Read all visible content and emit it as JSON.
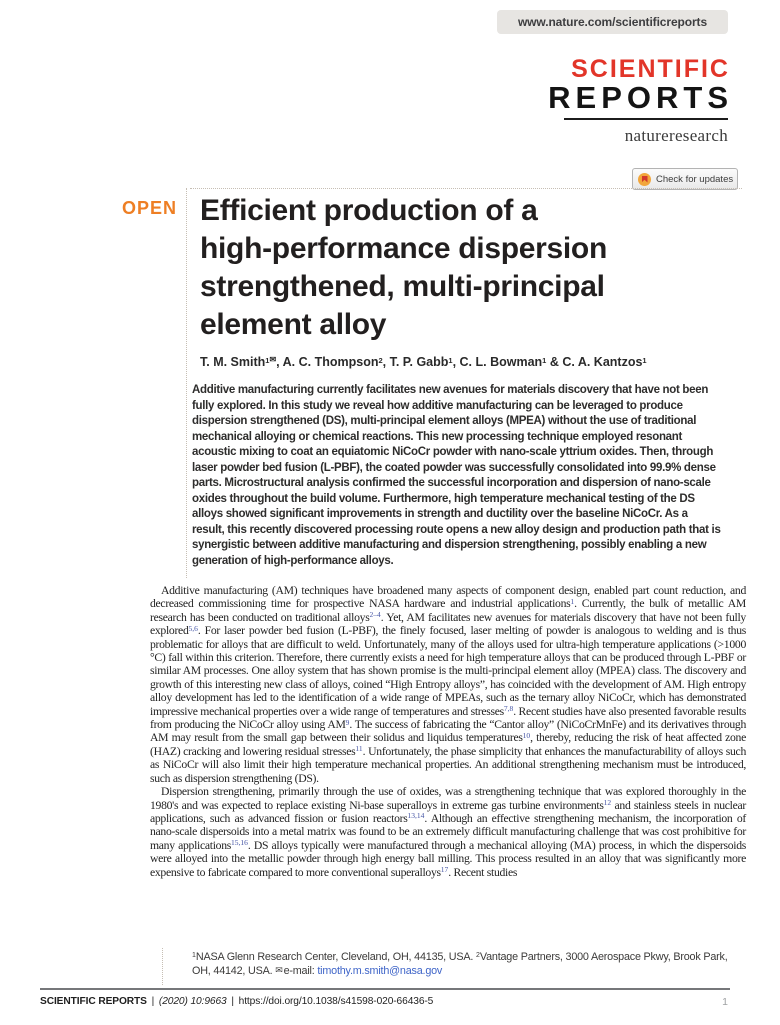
{
  "colors": {
    "brand_red": "#e23529",
    "open_orange": "#ee7f24",
    "link_blue": "#3e64c8",
    "ref_blue": "#4353a4",
    "banner_gray": "#e7e5e2"
  },
  "icons": {
    "envelope": "✉"
  },
  "header": {
    "site_url": "www.nature.com/scientificreports"
  },
  "logo": {
    "line1": "SCIENTIFIC",
    "line2": "REPORTS",
    "brand": "natureresearch",
    "check_updates_label": "Check for updates"
  },
  "article": {
    "open_label": "OPEN",
    "title_lines": [
      "Efficient production of a",
      "high-performance dispersion",
      "strengthened, multi-principal",
      "element alloy"
    ],
    "authors_runs": [
      {
        "text": "T. M. Smith"
      },
      {
        "sup": "1"
      },
      {
        "icon": "envelope",
        "raised": true
      },
      {
        "text": ", A. C. Thompson"
      },
      {
        "sup": "2"
      },
      {
        "text": ", T. P. Gabb"
      },
      {
        "sup": "1"
      },
      {
        "text": ", C. L. Bowman"
      },
      {
        "sup": "1"
      },
      {
        "text": " & C. A. Kantzos"
      },
      {
        "sup": "1"
      }
    ],
    "abstract": "Additive manufacturing currently facilitates new avenues for materials discovery that have not been fully explored. In this study we reveal how additive manufacturing can be leveraged to produce dispersion strengthened (DS), multi-principal element alloys (MPEA) without the use of traditional mechanical alloying or chemical reactions. This new processing technique employed resonant acoustic mixing to coat an equiatomic NiCoCr powder with nano-scale yttrium oxides. Then, through laser powder bed fusion (L-PBF), the coated powder was successfully consolidated into 99.9% dense parts. Microstructural analysis confirmed the successful incorporation and dispersion of nano-scale oxides throughout the build volume. Furthermore, high temperature mechanical testing of the DS alloys showed significant improvements in strength and ductility over the baseline NiCoCr. As a result, this recently discovered processing route opens a new alloy design and production path that is synergistic between additive manufacturing and dispersion strengthening, possibly enabling a new generation of high-performance alloys."
  },
  "body": {
    "paragraphs": [
      {
        "runs": [
          {
            "text": "Additive manufacturing (AM) techniques have broadened many aspects of component design, enabled part count reduction, and decreased commissioning time for prospective NASA hardware and industrial applications"
          },
          {
            "sup": "1",
            "ref": true
          },
          {
            "text": ". Currently, the bulk of metallic AM research has been conducted on traditional alloys"
          },
          {
            "sup": "2–4",
            "ref": true
          },
          {
            "text": ". Yet, AM facilitates new avenues for materials discovery that have not been fully explored"
          },
          {
            "sup": "5,6",
            "ref": true
          },
          {
            "text": ". For laser powder bed fusion (L-PBF), the finely focused, laser melting of powder is analogous to welding and is thus problematic for alloys that are difficult to weld. Unfortunately, many of the alloys used for ultra-high temperature applications (>1000 °C) fall within this criterion. Therefore, there currently exists a need for high temperature alloys that can be produced through L-PBF or similar AM processes. One alloy system that has shown promise is the multi-principal element alloy (MPEA) class. The discovery and growth of this interesting new class of alloys, coined “High Entropy alloys”, has coincided with the development of AM. High entropy alloy development has led to the identification of a wide range of MPEAs, such as the ternary alloy NiCoCr, which has demonstrated impressive mechanical properties over a wide range of temperatures and stresses"
          },
          {
            "sup": "7,8",
            "ref": true
          },
          {
            "text": ". Recent studies have also presented favorable results from producing the NiCoCr alloy using AM"
          },
          {
            "sup": "9",
            "ref": true
          },
          {
            "text": ". The success of fabricating the “Cantor alloy” (NiCoCrMnFe) and its derivatives through AM may result from the small gap between their solidus and liquidus temperatures"
          },
          {
            "sup": "10",
            "ref": true
          },
          {
            "text": ", thereby, reducing the risk of heat affected zone (HAZ) cracking and lowering residual stresses"
          },
          {
            "sup": "11",
            "ref": true
          },
          {
            "text": ". Unfortunately, the phase simplicity that enhances the manufacturability of alloys such as NiCoCr will also limit their high temperature mechanical properties. An additional strengthening mechanism must be introduced, such as dispersion strengthening (DS)."
          }
        ]
      },
      {
        "runs": [
          {
            "text": "Dispersion strengthening, primarily through the use of oxides, was a strengthening technique that was explored thoroughly in the 1980's and was expected to replace existing Ni-base superalloys in extreme gas turbine environments"
          },
          {
            "sup": "12",
            "ref": true
          },
          {
            "text": " and stainless steels in nuclear applications, such as advanced fission or fusion reactors"
          },
          {
            "sup": "13,14",
            "ref": true
          },
          {
            "text": ". Although an effective strengthening mechanism, the incorporation of nano-scale dispersoids into a metal matrix was found to be an extremely difficult manufacturing challenge that was cost prohibitive for many applications"
          },
          {
            "sup": "15,16",
            "ref": true
          },
          {
            "text": ". DS alloys typically were manufactured through a mechanical alloying (MA) process, in which the dispersoids were alloyed into the metallic powder through high energy ball milling. This process resulted in an alloy that was significantly more expensive to fabricate compared to more conventional superalloys"
          },
          {
            "sup": "17",
            "ref": true
          },
          {
            "text": ". Recent studies"
          }
        ]
      }
    ]
  },
  "footnote": {
    "runs": [
      {
        "sup": "1"
      },
      {
        "text": "NASA Glenn Research Center, Cleveland, OH, 44135, USA. "
      },
      {
        "sup": "2"
      },
      {
        "text": "Vantage Partners, 3000 Aerospace Pkwy, Brook Park, OH, 44142, USA. "
      },
      {
        "icon": "envelope"
      },
      {
        "text": "e-mail: "
      },
      {
        "link": "timothy.m.smith@nasa.gov"
      }
    ]
  },
  "footer": {
    "journal": "SCIENTIFIC REPORTS",
    "separator": "|",
    "citation": "(2020) 10:9663",
    "doi": "https://doi.org/10.1038/s41598-020-66436-5",
    "page_number": "1"
  }
}
